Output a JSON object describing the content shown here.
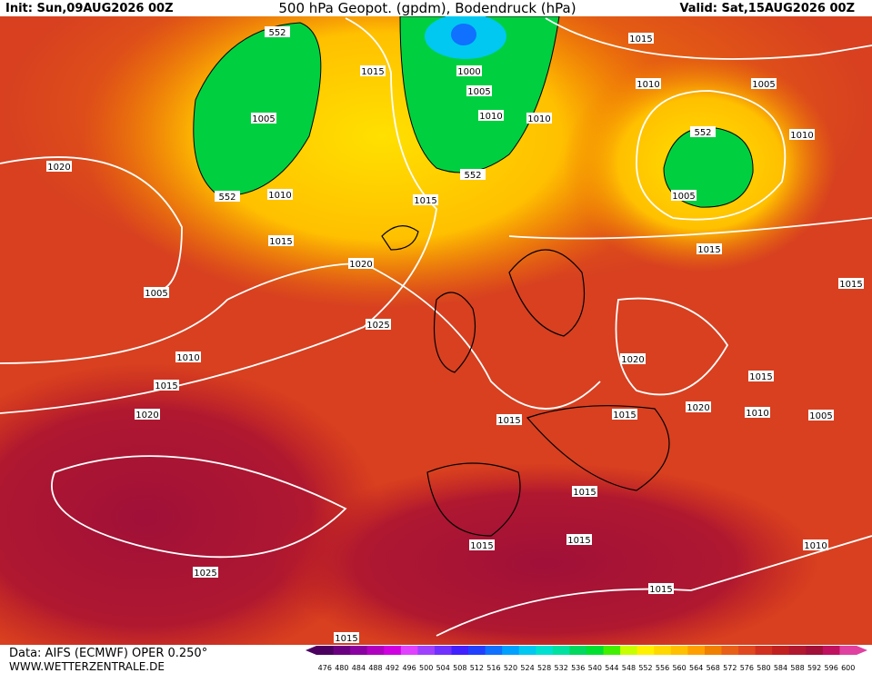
{
  "header": {
    "init": "Init: Sun,09AUG2026 00Z",
    "title": "500 hPa Geopot. (gpdm), Bodendruck (hPa)",
    "valid": "Valid: Sat,15AUG2026 00Z"
  },
  "isobar_labels": [
    "552",
    "1015",
    "1015",
    "1000",
    "1010",
    "1005",
    "1005",
    "1005",
    "1010",
    "1010",
    "552",
    "1010",
    "1020",
    "552",
    "552",
    "1010",
    "1005",
    "1015",
    "1015",
    "1015",
    "1020",
    "1015",
    "1005",
    "1025",
    "1020",
    "1010",
    "1015",
    "1015",
    "1020",
    "1015",
    "1010",
    "1005",
    "1020",
    "1015",
    "1015",
    "1015",
    "1015",
    "1010",
    "1025",
    "1015",
    "1015"
  ],
  "footer": {
    "data": "Data: AIFS (ECMWF) OPER 0.250°",
    "site": "WWW.WETTERZENTRALE.DE"
  },
  "colorbar": {
    "labels": [
      476,
      480,
      484,
      488,
      492,
      496,
      500,
      504,
      508,
      512,
      516,
      520,
      524,
      528,
      532,
      536,
      540,
      544,
      548,
      552,
      556,
      560,
      564,
      568,
      572,
      576,
      580,
      584,
      588,
      592,
      596,
      600
    ],
    "colors": [
      "#4b0060",
      "#6a0080",
      "#8a00a0",
      "#b000c0",
      "#d000e0",
      "#e040ff",
      "#a040ff",
      "#7030ff",
      "#4020ff",
      "#2040ff",
      "#1070ff",
      "#00a0ff",
      "#00c8f0",
      "#00e0d0",
      "#00e0a0",
      "#00d860",
      "#00e030",
      "#40f000",
      "#c8ff00",
      "#fff000",
      "#ffd800",
      "#ffc000",
      "#ffa000",
      "#f08000",
      "#e86018",
      "#e04820",
      "#d03020",
      "#c02020",
      "#b01830",
      "#a01038",
      "#c01060",
      "#e040a0"
    ]
  }
}
